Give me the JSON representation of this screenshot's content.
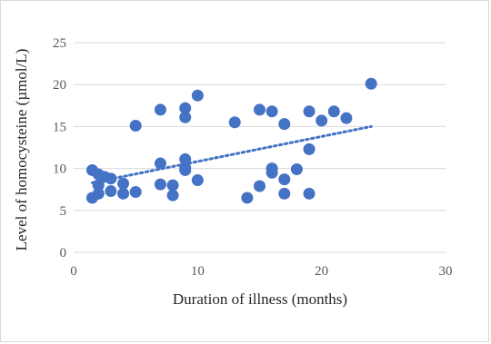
{
  "chart_data": {
    "type": "scatter",
    "title": "",
    "xlabel": "Duration of illness (months)",
    "ylabel": "Level of homocysteine (µmol/L)",
    "xlim": [
      0,
      30
    ],
    "ylim": [
      0,
      25
    ],
    "x_ticks": [
      0,
      10,
      20,
      30
    ],
    "y_ticks": [
      0,
      5,
      10,
      15,
      20,
      25
    ],
    "grid": "horizontal",
    "legend": "none",
    "colors": {
      "points": "#4472C4",
      "trendline": "#4472C4",
      "grid": "#d9d9d9"
    },
    "series": [
      {
        "points": [
          [
            1.5,
            6.5
          ],
          [
            1.5,
            9.8
          ],
          [
            2,
            9.3
          ],
          [
            2,
            8.0
          ],
          [
            2,
            7.0
          ],
          [
            2.5,
            9.0
          ],
          [
            3,
            8.8
          ],
          [
            3,
            7.3
          ],
          [
            4,
            8.2
          ],
          [
            4,
            7.0
          ],
          [
            5,
            15.1
          ],
          [
            5,
            7.2
          ],
          [
            7,
            17.0
          ],
          [
            7,
            10.6
          ],
          [
            7,
            8.1
          ],
          [
            8,
            8.0
          ],
          [
            8,
            6.8
          ],
          [
            9,
            17.2
          ],
          [
            9,
            16.1
          ],
          [
            9,
            11.1
          ],
          [
            9,
            10.1
          ],
          [
            9,
            9.8
          ],
          [
            10,
            18.7
          ],
          [
            10,
            8.6
          ],
          [
            13,
            15.5
          ],
          [
            14,
            6.5
          ],
          [
            15,
            17.0
          ],
          [
            15,
            7.9
          ],
          [
            16,
            16.8
          ],
          [
            16,
            10.0
          ],
          [
            16,
            9.5
          ],
          [
            17,
            15.3
          ],
          [
            17,
            8.7
          ],
          [
            17,
            7.0
          ],
          [
            18,
            9.9
          ],
          [
            19,
            16.8
          ],
          [
            19,
            12.3
          ],
          [
            19,
            7.0
          ],
          [
            20,
            15.7
          ],
          [
            21,
            16.8
          ],
          [
            22,
            16.0
          ],
          [
            24,
            20.1
          ]
        ]
      }
    ],
    "trendline": {
      "type": "linear",
      "x": [
        1.5,
        24
      ],
      "y": [
        8.3,
        15.0
      ]
    }
  }
}
